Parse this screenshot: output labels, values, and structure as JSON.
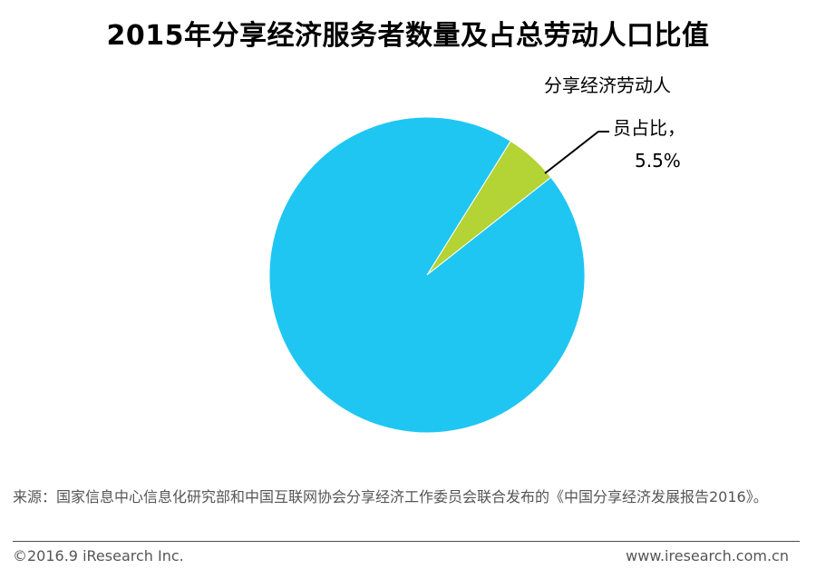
{
  "title": "2015年分享经济服务者数量及占总劳动人口比值",
  "chart_data": {
    "type": "pie",
    "slices": [
      {
        "name": "分享经济劳动人员占比",
        "value": 5.5,
        "color": "#b4d335",
        "label_lines": [
          "分享经济劳动人",
          "员占比，",
          "5.5%"
        ]
      },
      {
        "name": "",
        "value": 94.5,
        "color": "#1fc6f2"
      }
    ]
  },
  "source": "来源：国家信息中心信息化研究部和中国互联网协会分享经济工作委员会联合发布的《中国分享经济发展报告2016》。",
  "footer": {
    "copyright": "©2016.9 iResearch Inc.",
    "website": "www.iresearch.com.cn"
  }
}
